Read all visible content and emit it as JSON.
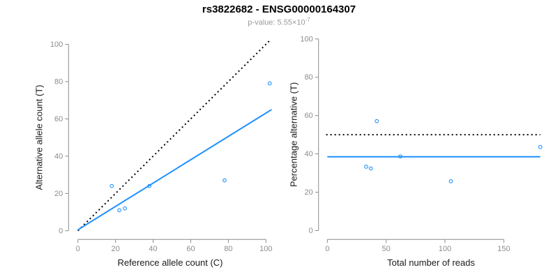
{
  "header": {
    "title": "rs3822682 - ENSG00000164307",
    "pvalue_label": "p-value: 5.55×10",
    "pvalue_exponent": "-7"
  },
  "colors": {
    "accent_blue": "#1E90FF",
    "axis_gray": "#8c8c8c",
    "tick_label_gray": "#8c8c8c",
    "subtitle_gray": "#9a9a9a",
    "dotted_line_black": "#000000"
  },
  "chart_data": [
    {
      "type": "scatter",
      "panel": "left",
      "xlabel": "Reference allele count (C)",
      "ylabel": "Alternative allele count (T)",
      "xticks": [
        0,
        20,
        40,
        60,
        80,
        100
      ],
      "yticks": [
        0,
        20,
        40,
        60,
        80,
        100
      ],
      "xlim": [
        0,
        103
      ],
      "ylim": [
        0,
        103
      ],
      "grid": false,
      "points": [
        [
          18,
          24
        ],
        [
          22,
          11
        ],
        [
          25,
          12
        ],
        [
          38,
          24
        ],
        [
          78,
          27
        ],
        [
          102,
          79
        ]
      ],
      "lines": [
        {
          "name": "identity-line",
          "style": "dotted",
          "color": "#000000",
          "from": [
            0,
            0
          ],
          "to": [
            102.5,
            102.5
          ]
        },
        {
          "name": "regression-line",
          "style": "solid",
          "color": "#1E90FF",
          "from": [
            0,
            0.5
          ],
          "to": [
            103,
            65
          ]
        }
      ]
    },
    {
      "type": "scatter",
      "panel": "right",
      "xlabel": "Total number of reads",
      "ylabel": "Percentage alternative (T)",
      "xticks": [
        0,
        50,
        100,
        150
      ],
      "yticks": [
        0,
        20,
        40,
        60,
        80,
        100
      ],
      "xlim": [
        0,
        182
      ],
      "ylim": [
        0,
        103
      ],
      "grid": false,
      "points": [
        [
          42,
          57.1
        ],
        [
          33,
          33.3
        ],
        [
          37,
          32.4
        ],
        [
          62,
          38.7
        ],
        [
          105,
          25.7
        ],
        [
          181,
          43.6
        ]
      ],
      "lines": [
        {
          "name": "fifty-percent-line",
          "style": "dotted",
          "color": "#000000",
          "from": [
            -1,
            50
          ],
          "to": [
            181,
            50
          ]
        },
        {
          "name": "mean-percentage-line",
          "style": "solid",
          "color": "#1E90FF",
          "from": [
            0,
            38.5
          ],
          "to": [
            181,
            38.5
          ]
        }
      ]
    }
  ]
}
